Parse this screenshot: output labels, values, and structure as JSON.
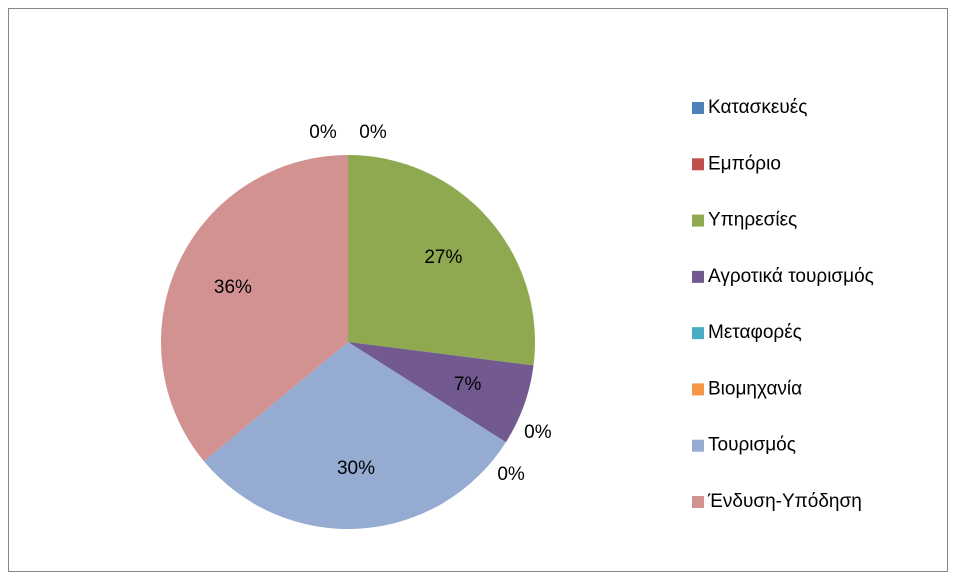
{
  "chart_data": {
    "type": "pie",
    "categories": [
      "Κατασκευές",
      "Εμπόριο",
      "Υπηρεσίες",
      "Αγροτικά τουρισμός",
      "Μεταφορές",
      "Βιομηχανία",
      "Τουρισμός",
      "Ένδυση-Υπόδηση"
    ],
    "values": [
      0,
      0,
      27,
      7,
      0,
      0,
      30,
      36
    ],
    "value_labels": [
      "0%",
      "0%",
      "27%",
      "7%",
      "0%",
      "0%",
      "30%",
      "36%"
    ],
    "colors": [
      "#4f81bd",
      "#c0504d",
      "#8ea94f",
      "#725a91",
      "#4bacc6",
      "#f79646",
      "#95abd2",
      "#d19291"
    ],
    "legend": "right"
  }
}
